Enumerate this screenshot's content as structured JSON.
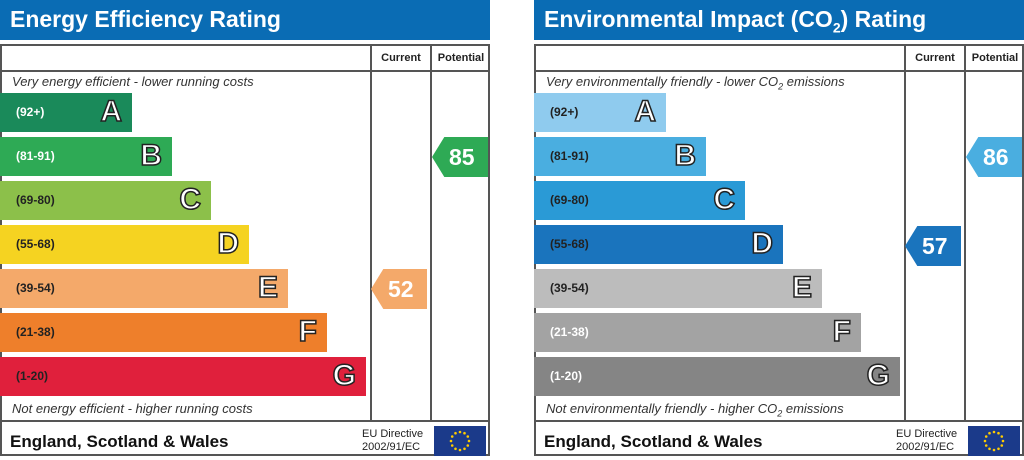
{
  "chart_data": [
    {
      "type": "table",
      "title": "Energy Efficiency Rating",
      "columns": [
        "Current",
        "Potential"
      ],
      "top_note": "Very energy efficient - lower running costs",
      "bottom_note": "Not energy efficient - higher running costs",
      "bands": [
        {
          "letter": "A",
          "range": "(92+)",
          "color": "#1a8a5a",
          "text": "#fff"
        },
        {
          "letter": "B",
          "range": "(81-91)",
          "color": "#2eaa55",
          "text": "#fff"
        },
        {
          "letter": "C",
          "range": "(69-80)",
          "color": "#8cc04a",
          "text": "#222"
        },
        {
          "letter": "D",
          "range": "(55-68)",
          "color": "#f5d321",
          "text": "#222"
        },
        {
          "letter": "E",
          "range": "(39-54)",
          "color": "#f4a96a",
          "text": "#222"
        },
        {
          "letter": "F",
          "range": "(21-38)",
          "color": "#ee7f2b",
          "text": "#222"
        },
        {
          "letter": "G",
          "range": "(1-20)",
          "color": "#e0203c",
          "text": "#222"
        }
      ],
      "current": {
        "value": "52",
        "band": "E",
        "color": "#f4a96a"
      },
      "potential": {
        "value": "85",
        "band": "B",
        "color": "#2eaa55"
      },
      "footer": "England, Scotland & Wales",
      "directive": [
        "EU Directive",
        "2002/91/EC"
      ]
    },
    {
      "type": "table",
      "title": "Environmental Impact (CO",
      "title_sub": "2",
      "title_end": ") Rating",
      "columns": [
        "Current",
        "Potential"
      ],
      "top_note": "Very environmentally friendly - lower CO",
      "top_note_sub": "2",
      "top_note_end": " emissions",
      "bottom_note": "Not environmentally friendly - higher CO",
      "bottom_note_sub": "2",
      "bottom_note_end": " emissions",
      "bands": [
        {
          "letter": "A",
          "range": "(92+)",
          "color": "#8fcbee",
          "text": "#222"
        },
        {
          "letter": "B",
          "range": "(81-91)",
          "color": "#4aaee0",
          "text": "#222"
        },
        {
          "letter": "C",
          "range": "(69-80)",
          "color": "#2a9ad6",
          "text": "#222"
        },
        {
          "letter": "D",
          "range": "(55-68)",
          "color": "#1a74bd",
          "text": "#222"
        },
        {
          "letter": "E",
          "range": "(39-54)",
          "color": "#bcbcbc",
          "text": "#222"
        },
        {
          "letter": "F",
          "range": "(21-38)",
          "color": "#a3a3a3",
          "text": "#fff"
        },
        {
          "letter": "G",
          "range": "(1-20)",
          "color": "#858585",
          "text": "#fff"
        }
      ],
      "current": {
        "value": "57",
        "band": "D",
        "color": "#1a74bd"
      },
      "potential": {
        "value": "86",
        "band": "B",
        "color": "#4aaee0"
      },
      "footer": "England, Scotland & Wales",
      "directive": [
        "EU Directive",
        "2002/91/EC"
      ]
    }
  ]
}
